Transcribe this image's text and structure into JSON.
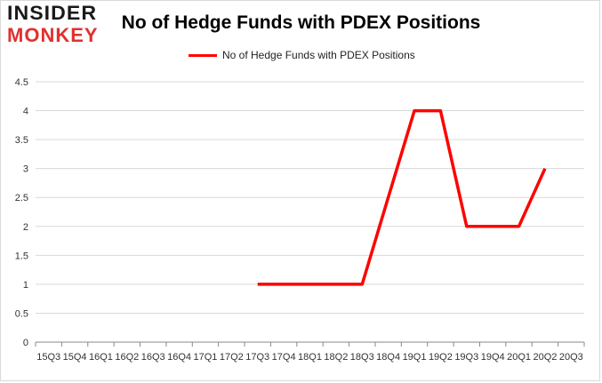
{
  "logo": {
    "line1": "INSIDER",
    "line2": "MONKEY"
  },
  "chart_data": {
    "type": "line",
    "title": "No of Hedge Funds with PDEX Positions",
    "xlabel": "",
    "ylabel": "",
    "categories": [
      "15Q3",
      "15Q4",
      "16Q1",
      "16Q2",
      "16Q3",
      "16Q4",
      "17Q1",
      "17Q2",
      "17Q3",
      "17Q4",
      "18Q1",
      "18Q2",
      "18Q3",
      "18Q4",
      "19Q1",
      "19Q2",
      "19Q3",
      "19Q4",
      "20Q1",
      "20Q2",
      "20Q3"
    ],
    "series": [
      {
        "name": "No of Hedge Funds with PDEX Positions",
        "color": "#ff0000",
        "values": [
          null,
          null,
          null,
          null,
          null,
          null,
          null,
          null,
          1,
          1,
          1,
          1,
          1,
          2.5,
          4,
          4,
          2,
          2,
          2,
          3,
          null
        ]
      }
    ],
    "ylim": [
      0,
      4.5
    ],
    "yticks": [
      "0",
      "0.5",
      "1",
      "1.5",
      "2",
      "2.5",
      "3",
      "3.5",
      "4",
      "4.5"
    ],
    "grid": true,
    "legend_position": "top"
  }
}
